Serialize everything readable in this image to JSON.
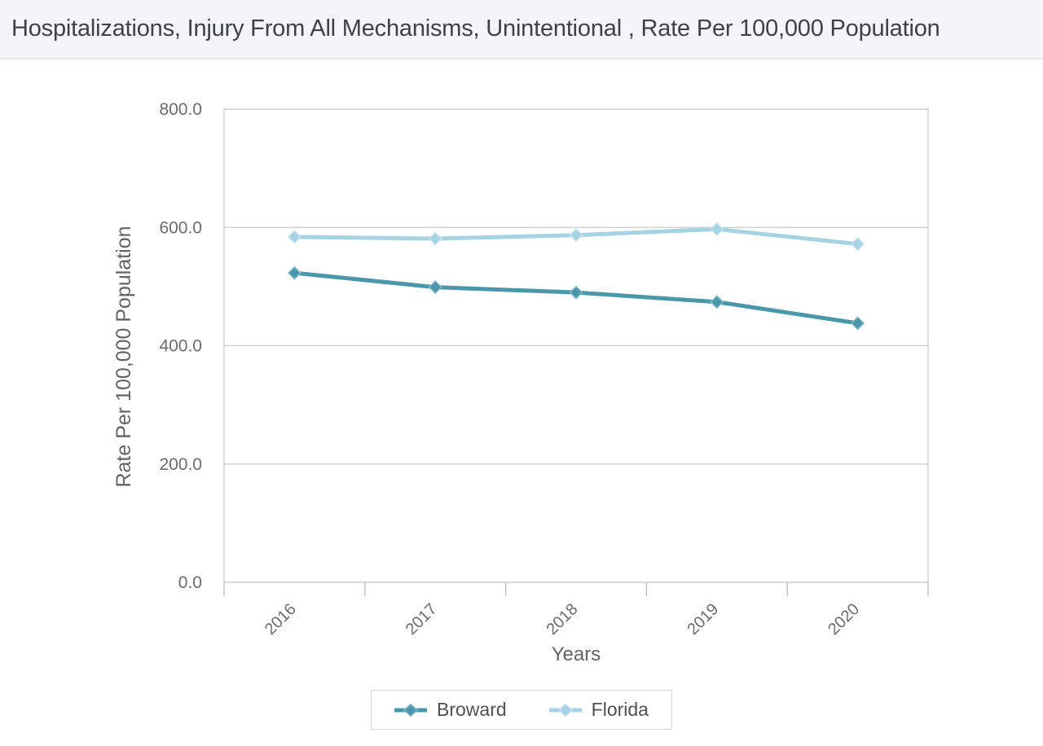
{
  "page": {
    "title": "Hospitalizations, Injury From All Mechanisms, Unintentional , Rate Per 100,000 Population"
  },
  "chart_data": {
    "type": "line",
    "categories": [
      "2016",
      "2017",
      "2018",
      "2019",
      "2020"
    ],
    "series": [
      {
        "name": "Broward",
        "color": "#4997a9",
        "values": [
          523,
          499,
          490,
          474,
          438
        ]
      },
      {
        "name": "Florida",
        "color": "#a6d3e2",
        "values": [
          584,
          581,
          587,
          597,
          572
        ]
      }
    ],
    "title": "Hospitalizations, Injury From All Mechanisms, Unintentional , Rate Per 100,000 Population",
    "xlabel": "Years",
    "ylabel": "Rate Per 100,000 Population",
    "ylim": [
      0,
      800
    ],
    "yticks": [
      800,
      600,
      400,
      200,
      0
    ],
    "ytick_labels": [
      "800.0",
      "600.0",
      "400.0",
      "200.0",
      "0.0"
    ],
    "x_label_rotation": -45,
    "grid": true,
    "marker": "diamond",
    "legend_position": "bottom-center"
  },
  "colors": {
    "grid_line": "#cccccc",
    "plot_border": "#c8cdd0",
    "axis_tick": "#b8bcbe",
    "axis_text": "#6b6b6b",
    "axis_title_text": "#636363",
    "legend_text": "#4d5154",
    "header_bg": "#f3f6f9"
  }
}
